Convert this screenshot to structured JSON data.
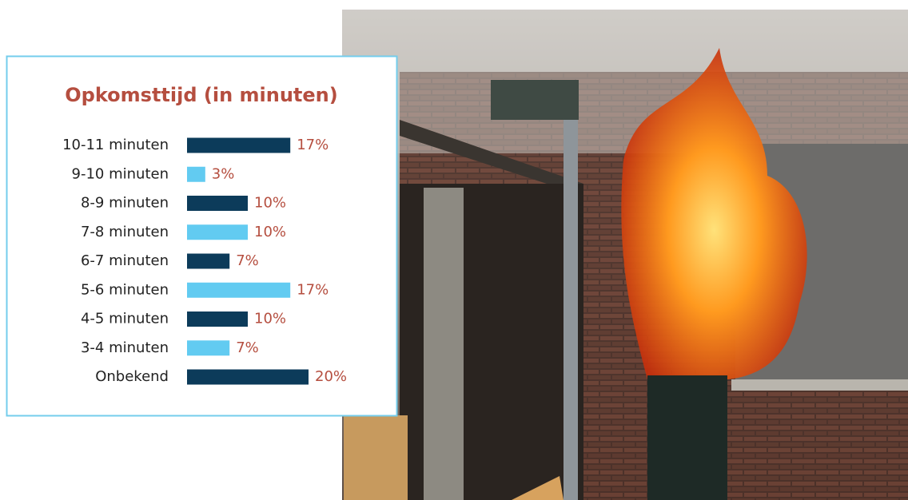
{
  "chart_data": {
    "type": "bar",
    "orientation": "horizontal",
    "title": "Opkomsttijd (in minuten)",
    "categories": [
      "10-11 minuten",
      "9-10 minuten",
      "8-9 minuten",
      "7-8 minuten",
      "6-7 minuten",
      "5-6 minuten",
      "4-5 minuten",
      "3-4 minuten",
      "Onbekend"
    ],
    "values": [
      17,
      3,
      10,
      10,
      7,
      17,
      10,
      7,
      20
    ],
    "value_labels": [
      "17%",
      "3%",
      "10%",
      "10%",
      "7%",
      "17%",
      "10%",
      "7%",
      "20%"
    ],
    "colors": [
      "#0c3b5a",
      "#62cbf1",
      "#0c3b5a",
      "#62cbf1",
      "#0c3b5a",
      "#62cbf1",
      "#0c3b5a",
      "#62cbf1",
      "#0c3b5a"
    ]
  }
}
